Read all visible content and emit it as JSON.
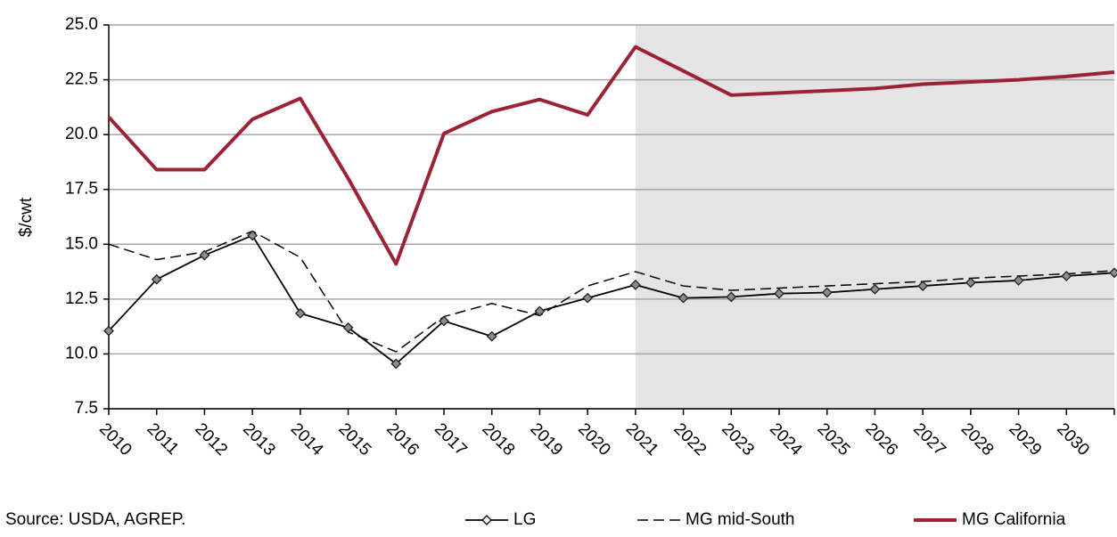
{
  "chart_data": {
    "type": "line",
    "y_label": "$/cwt",
    "source": "Source: USDA, AGREP.",
    "categories": [
      "2010",
      "2011",
      "2012",
      "2013",
      "2014",
      "2015",
      "2016",
      "2017",
      "2018",
      "2019",
      "2020",
      "2021",
      "2022",
      "2023",
      "2024",
      "2025",
      "2026",
      "2027",
      "2028",
      "2029",
      "2030",
      null
    ],
    "projection_start": "2021",
    "projection_color": "#e4e4e4",
    "ylim": [
      7.5,
      25
    ],
    "yticks": [
      7.5,
      {
        "value": 10,
        "label": "10.0"
      },
      12.5,
      {
        "value": 15,
        "label": "15.0"
      },
      17.5,
      {
        "value": 20,
        "label": "20.0"
      },
      22.5,
      {
        "value": 25,
        "label": "25.0"
      }
    ],
    "grid": true,
    "series": [
      {
        "name": "LG",
        "color": "#000000",
        "style": "solid-marker",
        "values": [
          11.05,
          13.4,
          14.5,
          15.4,
          11.85,
          11.2,
          9.55,
          11.5,
          10.8,
          11.95,
          12.55,
          13.15,
          12.55,
          12.6,
          12.75,
          12.8,
          12.95,
          13.1,
          13.25,
          13.35,
          13.55,
          13.7
        ]
      },
      {
        "name": "MG mid-South",
        "color": "#000000",
        "style": "dashed",
        "values": [
          15.0,
          14.3,
          14.65,
          15.6,
          14.4,
          11.0,
          10.1,
          11.7,
          12.3,
          11.75,
          13.1,
          13.75,
          13.1,
          12.9,
          13.0,
          13.1,
          13.2,
          13.3,
          13.45,
          13.55,
          13.65,
          13.8
        ]
      },
      {
        "name": "MG California",
        "color": "#9b2335",
        "style": "thick",
        "values": [
          20.8,
          18.4,
          18.4,
          20.7,
          21.65,
          18.0,
          14.1,
          20.05,
          21.05,
          21.6,
          20.9,
          24.0,
          22.9,
          21.8,
          21.9,
          22.0,
          22.1,
          22.3,
          22.4,
          22.5,
          22.65,
          22.85
        ]
      }
    ]
  }
}
